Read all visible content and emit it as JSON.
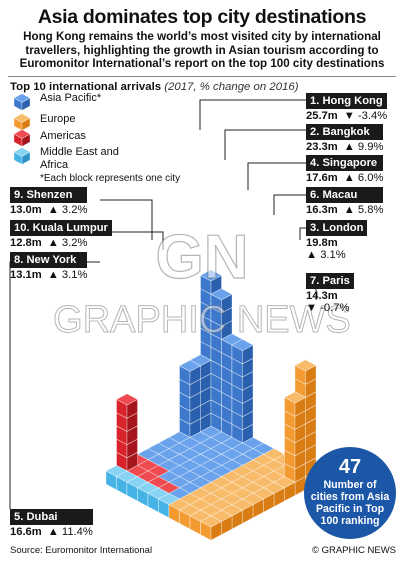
{
  "header": {
    "title": "Asia dominates top city destinations",
    "subtitle": "Hong Kong remains the world’s most visited city by international travellers, highlighting the growth in Asian tourism according to Euromonitor International’s report on the top 100 city destinations"
  },
  "chart_heading": {
    "bold": "Top 10 international arrivals",
    "italic": "(2017, % change on 2016)"
  },
  "legend": {
    "items": [
      {
        "label": "Asia Pacific*",
        "color": "#4a86d8"
      },
      {
        "label": "Europe",
        "color": "#f39a30"
      },
      {
        "label": "Americas",
        "color": "#d8232a"
      },
      {
        "label": "Middle East and Africa",
        "color": "#45b3e6"
      }
    ],
    "note": "*Each block represents one city"
  },
  "chart_data": {
    "type": "bar",
    "title": "Top 10 international arrivals",
    "subtitle": "(2017, % change on 2016)",
    "value_unit": "million arrivals",
    "categories": [
      "Hong Kong",
      "Bangkok",
      "London",
      "Singapore",
      "Macau",
      "Dubai",
      "Paris",
      "New York",
      "Shenzen",
      "Kuala Lumpur"
    ],
    "series": [
      {
        "name": "Arrivals 2017",
        "values": [
          25.7,
          23.3,
          19.8,
          17.6,
          16.3,
          16.6,
          14.3,
          13.1,
          13.0,
          12.8
        ]
      },
      {
        "name": "% change on 2016",
        "values": [
          -3.4,
          9.9,
          3.1,
          6.0,
          5.8,
          11.4,
          -0.7,
          3.1,
          3.2,
          3.2
        ]
      }
    ],
    "cities": [
      {
        "rank": "1.",
        "name": "Hong Kong",
        "value": "25.7m",
        "change": "-3.4%",
        "dir": "down",
        "region": "Asia Pacific*"
      },
      {
        "rank": "2.",
        "name": "Bangkok",
        "value": "23.3m",
        "change": "9.9%",
        "dir": "up",
        "region": "Asia Pacific*"
      },
      {
        "rank": "3.",
        "name": "London",
        "value": "19.8m",
        "change": "3.1%",
        "dir": "up",
        "region": "Europe"
      },
      {
        "rank": "4.",
        "name": "Singapore",
        "value": "17.6m",
        "change": "6.0%",
        "dir": "up",
        "region": "Asia Pacific*"
      },
      {
        "rank": "5.",
        "name": "Dubai",
        "value": "16.6m",
        "change": "11.4%",
        "dir": "up",
        "region": "Middle East and Africa"
      },
      {
        "rank": "6.",
        "name": "Macau",
        "value": "16.3m",
        "change": "5.8%",
        "dir": "up",
        "region": "Asia Pacific*"
      },
      {
        "rank": "7.",
        "name": "Paris",
        "value": "14.3m",
        "change": "-0.7%",
        "dir": "down",
        "region": "Europe"
      },
      {
        "rank": "8.",
        "name": "New York",
        "value": "13.1m",
        "change": "3.1%",
        "dir": "up",
        "region": "Americas"
      },
      {
        "rank": "9.",
        "name": "Shenzen",
        "value": "13.0m",
        "change": "3.2%",
        "dir": "up",
        "region": "Asia Pacific*"
      },
      {
        "rank": "10.",
        "name": "Kuala Lumpur",
        "value": "12.8m",
        "change": "3.2%",
        "dir": "up",
        "region": "Asia Pacific*"
      }
    ],
    "cities_by_region": [
      {
        "region": "Asia Pacific",
        "count": 47
      }
    ]
  },
  "callout": {
    "number": "47",
    "text": "Number of cities from Asia Pacific in Top 100 ranking"
  },
  "footer": {
    "source": "Source: Euromonitor International",
    "credit": "© GRAPHIC NEWS"
  },
  "watermark": {
    "logo": "GN",
    "text": "GRAPHIC NEWS"
  },
  "colors": {
    "asia": "#4a86d8",
    "europe": "#f39a30",
    "americas": "#d8232a",
    "mea": "#45b3e6",
    "callout": "#1b57a6"
  }
}
